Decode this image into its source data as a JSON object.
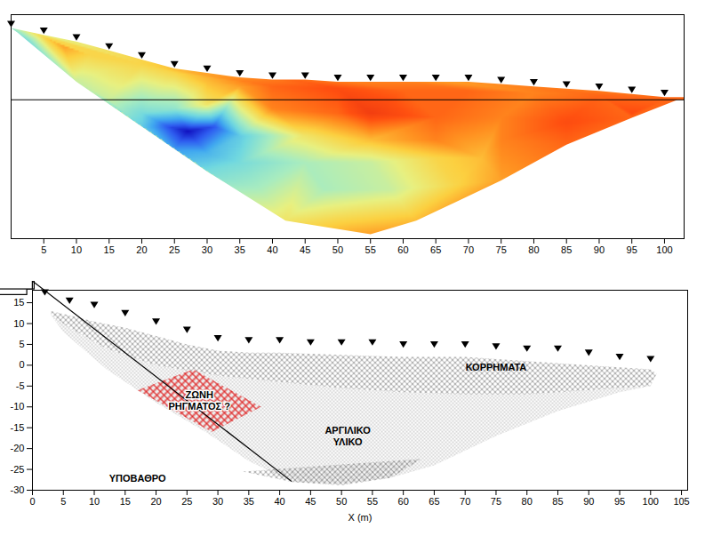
{
  "chart_data": [
    {
      "type": "contour",
      "xlim": [
        0,
        103
      ],
      "xticks": [
        5,
        10,
        15,
        20,
        25,
        30,
        35,
        40,
        45,
        50,
        55,
        60,
        65,
        70,
        75,
        80,
        85,
        90,
        95,
        100
      ],
      "ylim": [
        -31,
        19
      ],
      "tick_labels": "x",
      "marker": "triangle-down",
      "hline": 0,
      "electrodes": [
        [
          0,
          16
        ],
        [
          5,
          14.5
        ],
        [
          10,
          13
        ],
        [
          15,
          11
        ],
        [
          20,
          9
        ],
        [
          25,
          7
        ],
        [
          30,
          6
        ],
        [
          35,
          5
        ],
        [
          40,
          4.5
        ],
        [
          45,
          4.5
        ],
        [
          50,
          4
        ],
        [
          55,
          4
        ],
        [
          60,
          4
        ],
        [
          65,
          4
        ],
        [
          70,
          4
        ],
        [
          75,
          3.5
        ],
        [
          80,
          3
        ],
        [
          85,
          2.5
        ],
        [
          90,
          2
        ],
        [
          95,
          1.3
        ],
        [
          100,
          0.6
        ]
      ],
      "section_bottom": [
        [
          1,
          15
        ],
        [
          10,
          4
        ],
        [
          20,
          -6
        ],
        [
          30,
          -16
        ],
        [
          42,
          -27
        ],
        [
          55,
          -30
        ],
        [
          62,
          -27
        ],
        [
          75,
          -18
        ],
        [
          85,
          -10
        ],
        [
          95,
          -4
        ],
        [
          102,
          0
        ]
      ],
      "colorbar": {
        "range": [
          0,
          10
        ],
        "colors": [
          "#1010c0",
          "#2e5cf0",
          "#40a8f0",
          "#70d8e0",
          "#a8ecc0",
          "#e8f080",
          "#fcd040",
          "#ff9020",
          "#ff5010",
          "#e83010"
        ]
      },
      "samples": [
        [
          0,
          17,
          5
        ],
        [
          1,
          13,
          2
        ],
        [
          5,
          14,
          6.5
        ],
        [
          8,
          12,
          7.5
        ],
        [
          12,
          10,
          6.5
        ],
        [
          15,
          7,
          6
        ],
        [
          10,
          4,
          5
        ],
        [
          20,
          8,
          6.5
        ],
        [
          25,
          6,
          6.5
        ],
        [
          30,
          4,
          7
        ],
        [
          35,
          3,
          7.5
        ],
        [
          40,
          3,
          8.5
        ],
        [
          50,
          2.5,
          9
        ],
        [
          60,
          2,
          8.5
        ],
        [
          70,
          2,
          8.5
        ],
        [
          80,
          1.5,
          8
        ],
        [
          90,
          1,
          8.5
        ],
        [
          100,
          0,
          8.5
        ],
        [
          103,
          0,
          8.5
        ],
        [
          15,
          0,
          5
        ],
        [
          20,
          -3,
          3.5
        ],
        [
          25,
          -2,
          4
        ],
        [
          30,
          -1,
          6
        ],
        [
          40,
          -2,
          8
        ],
        [
          50,
          -3,
          8.5
        ],
        [
          55,
          -3,
          9.5
        ],
        [
          65,
          -4,
          8.5
        ],
        [
          75,
          -4,
          8
        ],
        [
          85,
          -5,
          9
        ],
        [
          95,
          -3,
          9
        ],
        [
          20,
          -6,
          3
        ],
        [
          24,
          -6,
          1
        ],
        [
          27,
          -7,
          0
        ],
        [
          31,
          -6,
          1
        ],
        [
          35,
          -8,
          3
        ],
        [
          45,
          -8,
          6
        ],
        [
          55,
          -9,
          7
        ],
        [
          65,
          -9,
          8
        ],
        [
          75,
          -9,
          8
        ],
        [
          25,
          -11,
          2
        ],
        [
          30,
          -12,
          2.5
        ],
        [
          35,
          -14,
          3.5
        ],
        [
          45,
          -14,
          4.5
        ],
        [
          55,
          -14,
          5
        ],
        [
          65,
          -13,
          6.5
        ],
        [
          72,
          -13,
          7
        ],
        [
          30,
          -16,
          3.5
        ],
        [
          38,
          -20,
          4.5
        ],
        [
          48,
          -20,
          4.5
        ],
        [
          58,
          -20,
          5
        ],
        [
          68,
          -19,
          6.5
        ],
        [
          42,
          -27,
          6
        ],
        [
          50,
          -27,
          6.5
        ],
        [
          55,
          -30,
          7.5
        ],
        [
          62,
          -27,
          7
        ],
        [
          75,
          -18,
          7.5
        ],
        [
          85,
          -10,
          8.5
        ],
        [
          95,
          -4,
          8.5
        ]
      ]
    },
    {
      "type": "section",
      "x_label": "X (m)",
      "xlim": [
        0,
        106
      ],
      "xticks": [
        0,
        5,
        10,
        15,
        20,
        25,
        30,
        35,
        40,
        45,
        50,
        55,
        60,
        65,
        70,
        75,
        80,
        85,
        90,
        95,
        100,
        105
      ],
      "ylim": [
        -30,
        18
      ],
      "yticks": [
        15,
        10,
        5,
        0,
        -5,
        -10,
        -15,
        -20,
        -25,
        -30
      ],
      "marker": "triangle-down",
      "electrodes": [
        [
          2,
          16.5
        ],
        [
          6,
          14.5
        ],
        [
          10,
          13.5
        ],
        [
          15,
          11.5
        ],
        [
          20,
          9.5
        ],
        [
          25,
          7.5
        ],
        [
          30,
          5.5
        ],
        [
          35,
          5
        ],
        [
          40,
          5
        ],
        [
          45,
          4.5
        ],
        [
          50,
          4.5
        ],
        [
          55,
          4.5
        ],
        [
          60,
          4
        ],
        [
          65,
          4
        ],
        [
          70,
          4
        ],
        [
          75,
          3.5
        ],
        [
          80,
          3
        ],
        [
          85,
          3
        ],
        [
          90,
          2
        ],
        [
          95,
          1
        ],
        [
          100,
          0.5
        ]
      ],
      "zones": [
        {
          "name": "ΚΟΡΡΗΜΑΤΑ",
          "lines": [
            "ΚΟΡΡΗΜΑΤΑ"
          ],
          "x": 75,
          "y": -0.5,
          "color": "#333333",
          "marker": "cross",
          "polygon": [
            [
              3,
              13
            ],
            [
              6,
              12
            ],
            [
              10,
              10.5
            ],
            [
              15,
              9
            ],
            [
              20,
              7
            ],
            [
              25,
              5
            ],
            [
              30,
              3.5
            ],
            [
              35,
              3
            ],
            [
              40,
              3
            ],
            [
              50,
              2.5
            ],
            [
              60,
              2
            ],
            [
              70,
              2
            ],
            [
              80,
              1
            ],
            [
              90,
              0
            ],
            [
              100,
              -1
            ],
            [
              101,
              -2
            ],
            [
              100,
              -5
            ],
            [
              90,
              -6
            ],
            [
              80,
              -7
            ],
            [
              70,
              -7
            ],
            [
              60,
              -6.5
            ],
            [
              50,
              -5.5
            ],
            [
              40,
              -4
            ],
            [
              30,
              -2.5
            ],
            [
              20,
              0
            ],
            [
              12,
              4
            ],
            [
              6,
              9
            ],
            [
              3,
              12
            ]
          ]
        },
        {
          "name": "ΑΡΓΙΛΙΚΟ ΥΛΙΚΟ",
          "lines": [
            "ΑΡΓΙΛΙΚΟ",
            "ΥΛΙΚΟ"
          ],
          "x": 51,
          "y": -17,
          "color": "#555555",
          "marker": "dot",
          "polygon": [
            [
              3,
              12
            ],
            [
              6,
              9
            ],
            [
              12,
              4
            ],
            [
              20,
              0
            ],
            [
              30,
              -2.5
            ],
            [
              40,
              -4
            ],
            [
              50,
              -5.5
            ],
            [
              60,
              -6.5
            ],
            [
              70,
              -7
            ],
            [
              80,
              -7
            ],
            [
              90,
              -6
            ],
            [
              100,
              -5
            ],
            [
              95,
              -6.5
            ],
            [
              85,
              -11
            ],
            [
              75,
              -17
            ],
            [
              65,
              -24
            ],
            [
              58,
              -27
            ],
            [
              50,
              -28.5
            ],
            [
              42,
              -28
            ],
            [
              35,
              -23
            ],
            [
              28,
              -16
            ],
            [
              20,
              -9
            ],
            [
              12,
              -1
            ],
            [
              5,
              8
            ]
          ]
        },
        {
          "name": "ΥΠΟΒΑΘΡΟ",
          "lines": [
            "ΥΠΟΒΑΘΡΟ"
          ],
          "x": 17,
          "y": -27,
          "color": "#333333",
          "marker": "cross",
          "polygon": [
            [
              42,
              -28
            ],
            [
              34,
              -25.5
            ],
            [
              48,
              -24
            ],
            [
              63,
              -22.5
            ],
            [
              58,
              -27
            ],
            [
              50,
              -28.8
            ]
          ]
        },
        {
          "name": "ΖΩΝΗ ΡΗΓΜΑΤΟΣ ?",
          "lines": [
            "ΖΩΝΗ",
            "ΡΗΓΜΑΤΟΣ ?"
          ],
          "x": 27,
          "y": -8.5,
          "color": "#e03030",
          "marker": "grid",
          "polygon": [
            [
              17,
              -6
            ],
            [
              26,
              -1
            ],
            [
              37,
              -10
            ],
            [
              29,
              -16
            ]
          ]
        }
      ]
    }
  ]
}
